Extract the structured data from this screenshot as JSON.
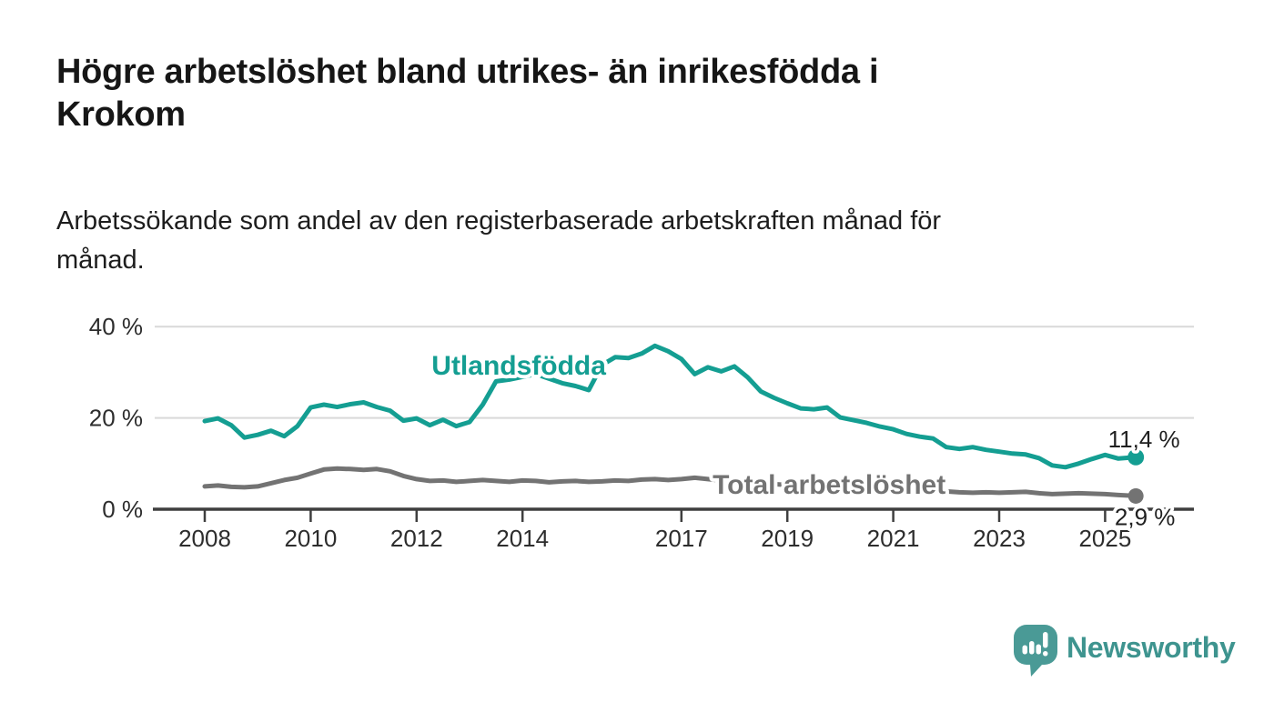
{
  "page": {
    "background": "#ffffff"
  },
  "header": {
    "title_lines": [
      "Högre arbetslöshet bland utrikes- än inrikesfödda i",
      "Krokom"
    ],
    "subtitle_lines": [
      "Arbetssökande som andel av den registerbaserade arbetskraften månad för",
      "månad."
    ]
  },
  "chart_data": {
    "type": "line",
    "title": "Högre arbetslöshet bland utrikes- än inrikesfödda i Krokom",
    "subtitle": "Arbetssökande som andel av den registerbaserade arbetskraften månad för månad.",
    "x_unit": "decimal_year",
    "xlim": [
      2007.7,
      2026.3
    ],
    "ylim": [
      0,
      42
    ],
    "grid": "horizontal",
    "legend_position": "inline-labels",
    "colors": {
      "grid": "#d9d9d9",
      "axis": "#3f3f3f",
      "tick_text": "#2d2d2d",
      "annotation_text": "#1f1f1f",
      "halo": "#ffffff"
    },
    "y_ticks": [
      {
        "value": 0,
        "label": "0 %"
      },
      {
        "value": 20,
        "label": "20 %"
      },
      {
        "value": 40,
        "label": "40 %"
      }
    ],
    "x_ticks": [
      {
        "value": 2008,
        "label": "2008"
      },
      {
        "value": 2010,
        "label": "2010"
      },
      {
        "value": 2012,
        "label": "2012"
      },
      {
        "value": 2014,
        "label": "2014"
      },
      {
        "value": 2017,
        "label": "2017"
      },
      {
        "value": 2019,
        "label": "2019"
      },
      {
        "value": 2021,
        "label": "2021"
      },
      {
        "value": 2023,
        "label": "2023"
      },
      {
        "value": 2025,
        "label": "2025"
      }
    ],
    "x": [
      2008.0,
      2008.25,
      2008.5,
      2008.75,
      2009.0,
      2009.25,
      2009.5,
      2009.75,
      2010.0,
      2010.25,
      2010.5,
      2010.75,
      2011.0,
      2011.25,
      2011.5,
      2011.75,
      2012.0,
      2012.25,
      2012.5,
      2012.75,
      2013.0,
      2013.25,
      2013.5,
      2013.75,
      2014.0,
      2014.25,
      2014.5,
      2014.75,
      2015.0,
      2015.25,
      2015.5,
      2015.75,
      2016.0,
      2016.25,
      2016.5,
      2016.75,
      2017.0,
      2017.25,
      2017.5,
      2017.75,
      2018.0,
      2018.25,
      2018.5,
      2018.75,
      2019.0,
      2019.25,
      2019.5,
      2019.75,
      2020.0,
      2020.25,
      2020.5,
      2020.75,
      2021.0,
      2021.25,
      2021.5,
      2021.75,
      2022.0,
      2022.25,
      2022.5,
      2022.75,
      2023.0,
      2023.25,
      2023.5,
      2023.75,
      2024.0,
      2024.25,
      2024.5,
      2024.75,
      2025.0,
      2025.25,
      2025.58
    ],
    "series": [
      {
        "name": "Utlandsfödda",
        "color": "#149e92",
        "line_width": 5,
        "end_dot": true,
        "end_value": 11.4,
        "end_label": "11,4 %",
        "label_anchor": {
          "x": 2013.93,
          "value": 29.5
        },
        "values": [
          19.3,
          19.9,
          18.4,
          15.7,
          16.3,
          17.2,
          16.0,
          18.2,
          22.3,
          22.9,
          22.4,
          23.0,
          23.4,
          22.4,
          21.6,
          19.4,
          19.9,
          18.4,
          19.6,
          18.2,
          19.1,
          22.9,
          28.0,
          28.4,
          29.0,
          29.6,
          28.6,
          27.6,
          27.0,
          26.1,
          31.6,
          33.3,
          33.1,
          34.1,
          35.8,
          34.6,
          32.9,
          29.6,
          31.1,
          30.2,
          31.3,
          28.9,
          25.8,
          24.4,
          23.2,
          22.1,
          21.9,
          22.3,
          20.1,
          19.5,
          18.9,
          18.1,
          17.5,
          16.5,
          15.9,
          15.5,
          13.6,
          13.2,
          13.6,
          13.0,
          12.6,
          12.2,
          12.0,
          11.2,
          9.6,
          9.2,
          10.0,
          11.0,
          11.9,
          11.1,
          11.4
        ]
      },
      {
        "name": "Total arbetslöshet",
        "color": "#737373",
        "line_width": 5,
        "end_dot": true,
        "end_value": 2.9,
        "end_label": "2,9 %",
        "label_anchor": {
          "x": 2019.79,
          "value": 3.4
        },
        "values": [
          5.0,
          5.2,
          4.9,
          4.8,
          5.0,
          5.7,
          6.4,
          6.9,
          7.8,
          8.7,
          8.9,
          8.8,
          8.6,
          8.8,
          8.3,
          7.3,
          6.6,
          6.2,
          6.3,
          6.0,
          6.2,
          6.4,
          6.2,
          6.0,
          6.3,
          6.2,
          5.9,
          6.1,
          6.2,
          6.0,
          6.1,
          6.3,
          6.2,
          6.5,
          6.6,
          6.4,
          6.6,
          6.9,
          6.6,
          6.3,
          6.1,
          5.9,
          5.8,
          5.5,
          5.3,
          5.1,
          5.0,
          5.1,
          5.3,
          5.6,
          5.5,
          5.2,
          4.9,
          4.6,
          4.4,
          4.1,
          3.9,
          3.7,
          3.6,
          3.7,
          3.6,
          3.7,
          3.8,
          3.5,
          3.3,
          3.4,
          3.5,
          3.4,
          3.3,
          3.1,
          2.9
        ]
      }
    ]
  },
  "branding": {
    "wordmark": "Newsworthy",
    "logo_icon": "newsworthy-speech-bubble-bar-chart-icon",
    "icon_color": "#4a9a96",
    "text_color": "#3e948f"
  }
}
